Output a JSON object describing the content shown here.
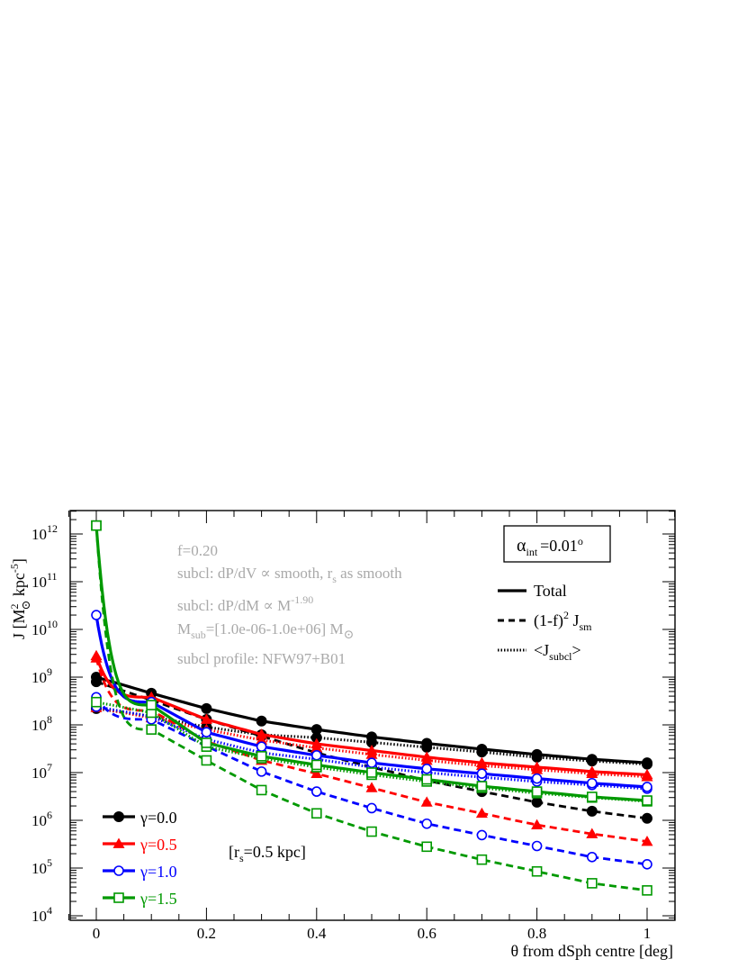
{
  "chart_data": {
    "type": "line",
    "x_axis": {
      "label": "θ from dSph centre [deg]",
      "range": [
        -0.05,
        1.05
      ],
      "ticks": [
        0,
        0.2,
        0.4,
        0.6,
        0.8,
        1
      ],
      "tick_labels": [
        "0",
        "0.2",
        "0.4",
        "0.6",
        "0.8",
        "1"
      ]
    },
    "y_axis": {
      "label_main": "J  [M",
      "label_sup": "2",
      "label_sub": "⊙",
      "label_unit": " kpc",
      "label_unit_sup": "-5",
      "label_close": "]",
      "scale": "log",
      "range": [
        7000.0,
        5000000000000.0
      ],
      "tick_mantissa": "10",
      "tick_exponents": [
        "4",
        "5",
        "6",
        "7",
        "8",
        "9",
        "10",
        "11",
        "12"
      ]
    },
    "annotations": {
      "f_line": "f=0.20",
      "spatial_a": "subcl: dP/dV ∝ smooth, r",
      "spatial_sub": "s",
      "spatial_b": " as smooth",
      "mass_a": "subcl: dP/dM ∝ M",
      "mass_sup": "-1.90",
      "msub_a": "M",
      "msub_sub": "sub",
      "msub_b": "=[1.0e-06-1.0e+06] M",
      "msub_sub2": "⊙",
      "profile": "subcl profile: NFW97+B01",
      "rs_a": "[r",
      "rs_sub": "s",
      "rs_b": "=0.5 kpc]"
    },
    "alpha_box": {
      "symbol": "α",
      "sub": "int",
      "val": "=0.01",
      "sup": "o"
    },
    "linestyle_legend": {
      "total": "Total",
      "smooth_a": "(1-f)",
      "smooth_sup": "2",
      "smooth_b": " J",
      "smooth_sub": "sm",
      "subcl_a": "<J",
      "subcl_sub": "subcl",
      "subcl_b": ">"
    },
    "legend": [
      "γ=0.0",
      "γ=0.5",
      "γ=1.0",
      "γ=1.5"
    ],
    "colors": [
      "#000000",
      "#ff0000",
      "#0000ff",
      "#009900"
    ],
    "markers": [
      "filled-circle",
      "filled-triangle",
      "open-circle",
      "open-square"
    ],
    "x": [
      0,
      0.1,
      0.2,
      0.3,
      0.4,
      0.5,
      0.6,
      0.7,
      0.8,
      0.9,
      1.0
    ],
    "series": [
      {
        "name": "γ=0.0",
        "total": [
          1000000000.0,
          460000000.0,
          220000000.0,
          120000000.0,
          80000000.0,
          56000000.0,
          41000000.0,
          31000000.0,
          24000000.0,
          19000000.0,
          16000000.0
        ],
        "smooth": [
          800000000.0,
          330000000.0,
          130000000.0,
          58000000.0,
          26000000.0,
          13000000.0,
          6800000.0,
          4000000.0,
          2400000.0,
          1550000.0,
          1100000.0
        ],
        "subcl": [
          220000000.0,
          150000000.0,
          90000000.0,
          62000000.0,
          54000000.0,
          43000000.0,
          34000000.0,
          27000000.0,
          21000000.0,
          17500000.0,
          15000000.0
        ]
      },
      {
        "name": "γ=0.5",
        "total": [
          2800000000.0,
          380000000.0,
          130000000.0,
          63000000.0,
          40000000.0,
          29000000.0,
          21000000.0,
          16000000.0,
          13000000.0,
          10500000.0,
          9000000.0
        ],
        "smooth": [
          2500000000.0,
          200000000.0,
          45000000.0,
          18000000.0,
          9500000.0,
          4800000.0,
          2400000.0,
          1400000.0,
          800000.0,
          520000.0,
          360000.0
        ],
        "subcl": [
          230000000.0,
          140000000.0,
          80000000.0,
          48000000.0,
          33000000.0,
          24000000.0,
          18000000.0,
          14000000.0,
          11500000.0,
          9500000.0,
          8200000.0
        ]
      },
      {
        "name": "γ=1.0",
        "total": [
          20000000000.0,
          300000000.0,
          70000000.0,
          35000000.0,
          23000000.0,
          16000000.0,
          12000000.0,
          9500000.0,
          7500000.0,
          6000000.0,
          5000000.0
        ],
        "smooth": [
          380000000.0,
          130000000.0,
          36000000.0,
          10500000.0,
          4000000.0,
          1800000.0,
          850000.0,
          490000.0,
          290000.0,
          170000.0,
          120000.0
        ],
        "subcl": [
          240000000.0,
          150000000.0,
          50000000.0,
          26000000.0,
          19000000.0,
          13000000.0,
          10000000.0,
          8000000.0,
          6500000.0,
          5500000.0,
          4600000.0
        ]
      },
      {
        "name": "γ=1.5",
        "total": [
          1500000000000.0,
          260000000.0,
          42000000.0,
          22000000.0,
          14500000.0,
          10000000.0,
          7200000.0,
          5200000.0,
          4000000.0,
          3100000.0,
          2600000.0
        ],
        "smooth": [
          1500000000000.0,
          80000000.0,
          18000000.0,
          4300000.0,
          1400000.0,
          580000.0,
          280000.0,
          150000.0,
          85000.0,
          48000.0,
          34000.0
        ],
        "subcl": [
          300000000.0,
          180000000.0,
          35000000.0,
          20000000.0,
          13000000.0,
          9000000.0,
          6500000.0,
          4800000.0,
          3700000.0,
          3000000.0,
          2500000.0
        ]
      }
    ]
  }
}
